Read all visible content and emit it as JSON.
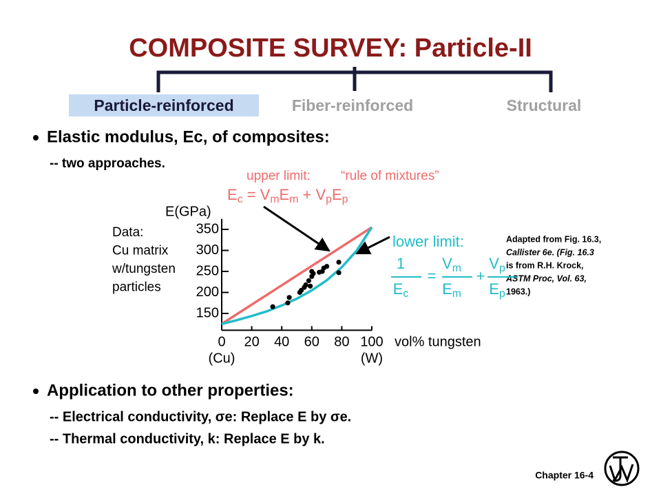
{
  "title": "COMPOSITE SURVEY:  Particle-II",
  "tabs": [
    "Particle-reinforced",
    "Fiber-reinforced",
    "Structural"
  ],
  "bullets": [
    {
      "text": "Elastic modulus, Ec, of composites:",
      "subs": [
        "-- two approaches."
      ]
    },
    {
      "text": "Application to other properties:",
      "subs": [
        "-- Electrical conductivity, σe:  Replace E by σe.",
        "-- Thermal conductivity, k:  Replace E by k."
      ]
    }
  ],
  "citation": [
    "Adapted from Fig. 16.3,",
    "Callister 6e.  (Fig. 16.3",
    "is from R.H. Krock,",
    "ASTM Proc, Vol. 63,",
    "1963.)"
  ],
  "footer": "Chapter 16-4",
  "chart_data": {
    "type": "scatter",
    "y_label": "E(GPa)",
    "x_label": "vol% tungsten",
    "x_end_labels": [
      "(Cu)",
      "(W)"
    ],
    "data_note": [
      "Data:",
      "Cu matrix",
      "w/tungsten",
      "particles"
    ],
    "xlim": [
      0,
      100
    ],
    "xticks": [
      0,
      20,
      40,
      60,
      80,
      100
    ],
    "ylim": [
      110,
      375
    ],
    "yticks": [
      150,
      200,
      250,
      300,
      350
    ],
    "upper_limit": {
      "label": "upper limit:",
      "note": "“rule of mixtures”",
      "color": "#ee6b6b",
      "formula": [
        "E",
        "c",
        " = V",
        "m",
        "E",
        "m",
        " + V",
        "p",
        "E",
        "p"
      ],
      "x": [
        0,
        100
      ],
      "values": [
        125,
        355
      ]
    },
    "lower_limit": {
      "label": "lower limit:",
      "color": "#22bcc8",
      "fractions": [
        {
          "num": [
            "1"
          ],
          "den": [
            "E",
            "c"
          ]
        },
        {
          "num": [
            "V",
            "m"
          ],
          "den": [
            "E",
            "m"
          ]
        },
        {
          "num": [
            "V",
            "p"
          ],
          "den": [
            "E",
            "p"
          ]
        }
      ],
      "ops": [
        "=",
        "+"
      ],
      "x": [
        0,
        10,
        20,
        30,
        40,
        50,
        60,
        70,
        80,
        90,
        100
      ],
      "values": [
        125,
        134,
        144,
        155,
        169,
        185,
        205,
        229,
        260,
        300,
        355
      ]
    },
    "points": {
      "color": "#000000",
      "x": [
        34,
        44,
        45,
        52,
        53,
        55,
        56,
        58,
        59,
        60,
        60,
        61,
        65,
        67,
        68,
        70,
        78,
        78
      ],
      "values": [
        166,
        175,
        188,
        200,
        205,
        212,
        218,
        228,
        215,
        238,
        250,
        245,
        248,
        250,
        258,
        262,
        247,
        272
      ]
    }
  }
}
